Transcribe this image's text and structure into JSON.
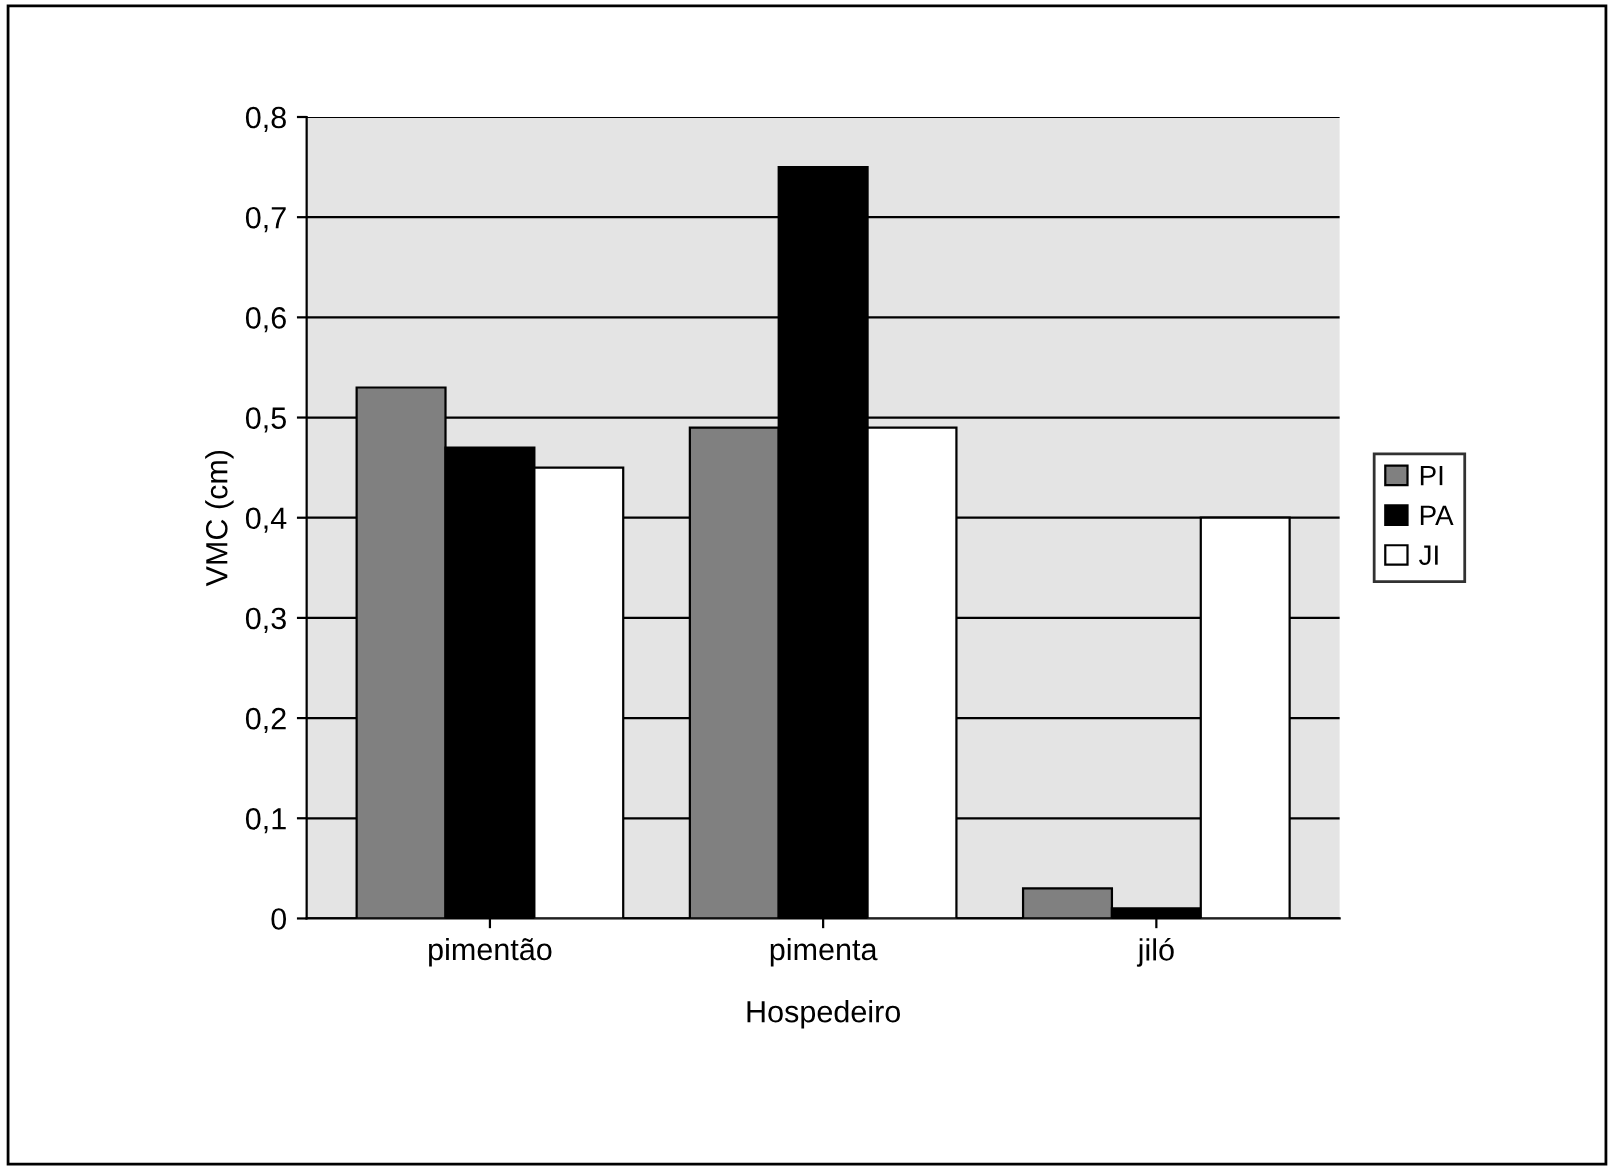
{
  "chart_data": {
    "type": "bar",
    "xlabel": "Hospedeiro",
    "ylabel": "VMC (cm)",
    "categories": [
      "pimentão",
      "pimenta",
      "jiló"
    ],
    "series": [
      {
        "name": "PI",
        "color": "#808080",
        "values": [
          0.53,
          0.49,
          0.03
        ]
      },
      {
        "name": "PA",
        "color": "#000000",
        "values": [
          0.47,
          0.75,
          0.01
        ]
      },
      {
        "name": "JI",
        "color": "#ffffff",
        "values": [
          0.45,
          0.49,
          0.4
        ]
      }
    ],
    "ylim": [
      0,
      0.8
    ],
    "yticks": [
      0,
      {
        "value": 0.1,
        "label": "0,1"
      },
      {
        "value": 0.2,
        "label": "0,2"
      },
      {
        "value": 0.3,
        "label": "0,3"
      },
      {
        "value": 0.4,
        "label": "0,4"
      },
      {
        "value": 0.5,
        "label": "0,5"
      },
      {
        "value": 0.6,
        "label": "0,6"
      },
      {
        "value": 0.7,
        "label": "0,7"
      },
      {
        "value": 0.8,
        "label": "0,8"
      }
    ],
    "grid": "y",
    "legend": "right"
  }
}
